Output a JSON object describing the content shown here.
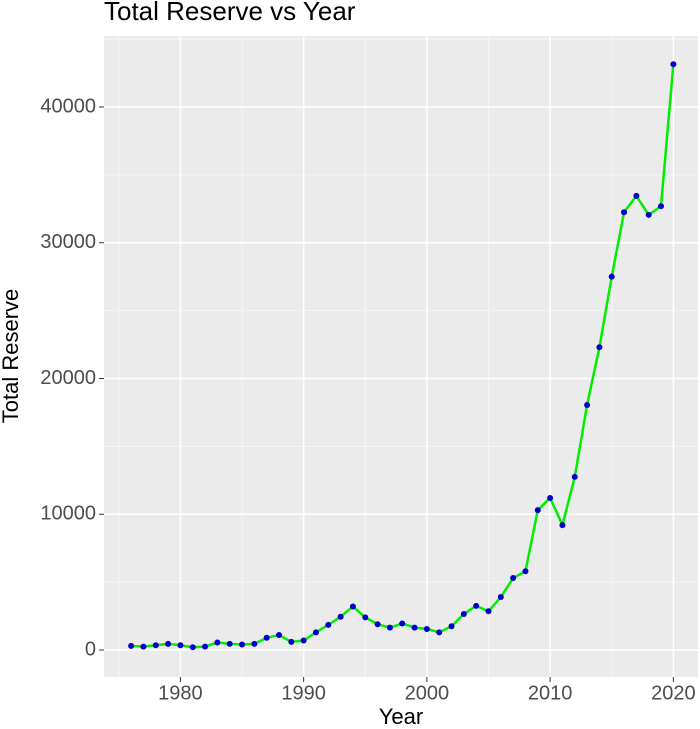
{
  "chart_data": {
    "type": "line",
    "title": "Total Reserve vs Year",
    "x_label": "Year",
    "y_label": "Total Reserve",
    "x": [
      1976,
      1977,
      1978,
      1979,
      1980,
      1981,
      1982,
      1983,
      1984,
      1985,
      1986,
      1987,
      1988,
      1989,
      1990,
      1991,
      1992,
      1993,
      1994,
      1995,
      1996,
      1997,
      1998,
      1999,
      2000,
      2001,
      2002,
      2003,
      2004,
      2005,
      2006,
      2007,
      2008,
      2009,
      2010,
      2011,
      2012,
      2013,
      2014,
      2015,
      2016,
      2017,
      2018,
      2019,
      2020
    ],
    "series": [
      {
        "name": "Total Reserve",
        "color": "#00ee00",
        "marker_color": "#0000cc",
        "values": [
          300,
          250,
          350,
          450,
          350,
          200,
          250,
          550,
          450,
          400,
          450,
          900,
          1100,
          600,
          700,
          1300,
          1850,
          2450,
          3200,
          2400,
          1900,
          1650,
          1950,
          1650,
          1550,
          1300,
          1750,
          2650,
          3250,
          2850,
          3900,
          5300,
          5800,
          10300,
          11200,
          9200,
          12750,
          18050,
          22300,
          27500,
          32250,
          33450,
          32050,
          32700,
          43150
        ]
      }
    ],
    "xlim": [
      1973.8,
      2022
    ],
    "xticks": [
      1980,
      1990,
      2000,
      2010,
      2020
    ],
    "ylim": [
      -1990,
      45230
    ],
    "yticks": [
      0,
      10000,
      20000,
      30000,
      40000
    ],
    "grid": true
  }
}
